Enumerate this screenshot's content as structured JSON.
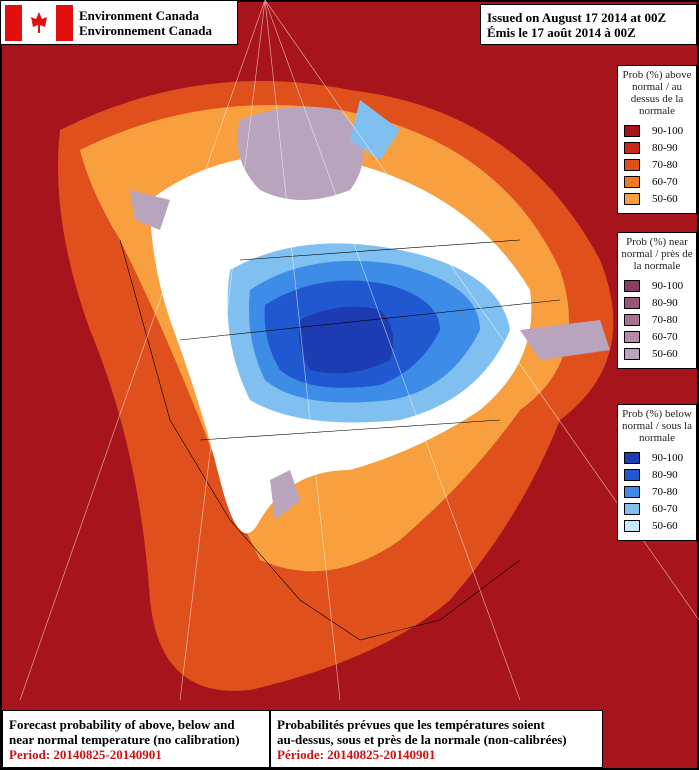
{
  "header": {
    "agency_en": "Environment Canada",
    "agency_fr": "Environnement Canada",
    "issued_en": "Issued on August 17 2014 at 00Z",
    "issued_fr": "Émis le 17 août 2014 à 00Z"
  },
  "legends": [
    {
      "title": "Prob (%) above normal / au dessus de la normale",
      "items": [
        {
          "label": "90-100",
          "color": "#a8141c"
        },
        {
          "label": "80-90",
          "color": "#c8281c"
        },
        {
          "label": "70-80",
          "color": "#e0501c"
        },
        {
          "label": "60-70",
          "color": "#f07828"
        },
        {
          "label": "50-60",
          "color": "#f8a040"
        }
      ]
    },
    {
      "title": "Prob (%) near normal / près de la normale",
      "items": [
        {
          "label": "90-100",
          "color": "#8c3c60"
        },
        {
          "label": "80-90",
          "color": "#9a5478"
        },
        {
          "label": "70-80",
          "color": "#a87090"
        },
        {
          "label": "60-70",
          "color": "#b48ca8"
        },
        {
          "label": "50-60",
          "color": "#b8a4bc"
        }
      ]
    },
    {
      "title": "Prob (%) below normal / sous la normale",
      "items": [
        {
          "label": "90-100",
          "color": "#1c3cb4"
        },
        {
          "label": "80-90",
          "color": "#2058d0"
        },
        {
          "label": "70-80",
          "color": "#3c8ce8"
        },
        {
          "label": "60-70",
          "color": "#80c0f0"
        },
        {
          "label": "50-60",
          "color": "#c8e8fc"
        }
      ]
    }
  ],
  "footer": {
    "en_line1": "Forecast probability of above, below and",
    "en_line2": "near normal temperature (no calibration)",
    "en_period": "Period: 20140825-20140901",
    "fr_line1": "Probabilités prévues que les températures soient",
    "fr_line2": "au-dessus, sous et près de la normale (non-calibrées)",
    "fr_period": "Période: 20140825-20140901"
  }
}
